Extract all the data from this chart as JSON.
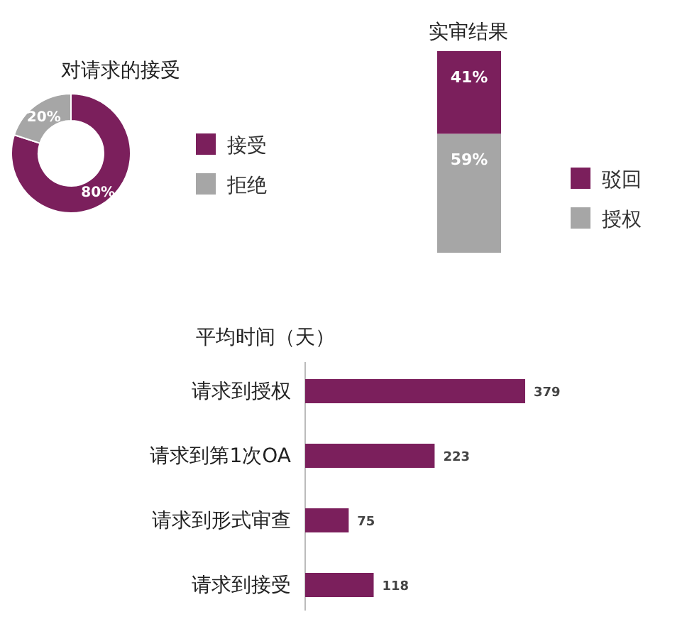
{
  "chart_data": [
    {
      "type": "donut",
      "title": "对请求的接受",
      "categories": [
        "接受",
        "拒绝"
      ],
      "values": [
        80,
        20
      ],
      "colors": [
        "#7b1f5c",
        "#a6a6a6"
      ],
      "value_labels": [
        "80%",
        "20%"
      ],
      "legend": "right"
    },
    {
      "type": "bar",
      "title": "实审结果",
      "categories": [
        null
      ],
      "stacked": true,
      "legend": "right",
      "series": [
        {
          "name": "授权",
          "color": "#a6a6a6",
          "values": [
            59
          ],
          "value_labels": [
            "59%"
          ]
        },
        {
          "name": "驳回",
          "color": "#7b1f5c",
          "values": [
            41
          ],
          "value_labels": [
            "41%"
          ]
        }
      ]
    },
    {
      "type": "bar",
      "title": "平均时间（天）",
      "orientation": "horizontal",
      "categories": [
        "请求到授权",
        "请求到第1次OA",
        "请求到形式审查",
        "请求到接受"
      ],
      "values": [
        379,
        223,
        75,
        118
      ],
      "color": "#7b1f5c",
      "data_labels": true
    }
  ]
}
